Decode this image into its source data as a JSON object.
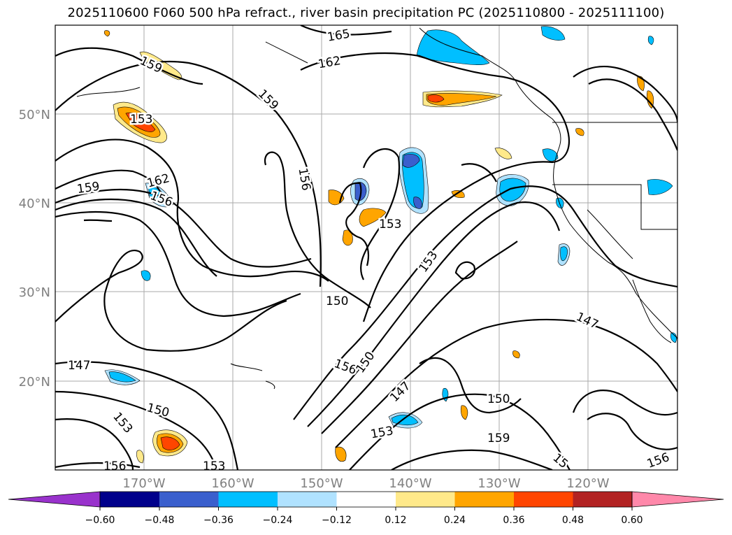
{
  "title": "2025110600 F060 500 hPa refract., river basin precipitation PC (2025110800 - 2025111100)",
  "map": {
    "lat_labels": [
      "50°N",
      "40°N",
      "30°N",
      "20°N"
    ],
    "lon_labels": [
      "170°W",
      "160°W",
      "150°W",
      "140°W",
      "130°W",
      "120°W"
    ],
    "contour_labels": [
      "165",
      "162",
      "159",
      "159",
      "153",
      "162",
      "159",
      "156",
      "156",
      "153",
      "153",
      "150",
      "147",
      "147",
      "150",
      "153",
      "156",
      "150",
      "147",
      "150",
      "159",
      "153",
      "156",
      "153",
      "156",
      "15"
    ]
  },
  "colorbar": {
    "ticks": [
      "−0.60",
      "−0.48",
      "−0.36",
      "−0.24",
      "−0.12",
      "0.12",
      "0.24",
      "0.36",
      "0.48",
      "0.60"
    ],
    "colors": [
      "#9932cc",
      "#00008b",
      "#3a5fcd",
      "#00bfff",
      "#b0e2ff",
      "#ffffff",
      "#ffe98a",
      "#ffa500",
      "#ff4500",
      "#b22222",
      "#ff88aa"
    ]
  }
}
